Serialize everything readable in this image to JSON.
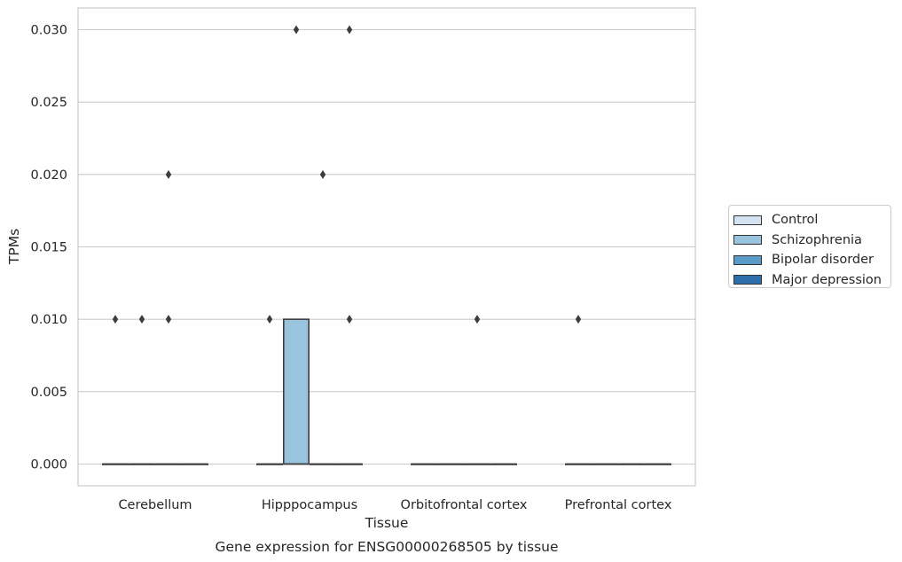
{
  "chart_data": {
    "type": "box",
    "title": "Gene expression for ENSG00000268505 by tissue",
    "xlabel": "Tissue",
    "ylabel": "TPMs",
    "categories": [
      "Cerebellum",
      "Hipppocampus",
      "Orbitofrontal cortex",
      "Prefrontal cortex"
    ],
    "ylim": [
      -0.0015,
      0.0315
    ],
    "yticks": [
      0.0,
      0.005,
      0.01,
      0.015,
      0.02,
      0.025,
      0.03
    ],
    "ytick_labels": [
      "0.000",
      "0.005",
      "0.010",
      "0.015",
      "0.020",
      "0.025",
      "0.030"
    ],
    "grid": "horizontal",
    "legend_position": "right",
    "series": [
      {
        "name": "Control",
        "color": "#d4e3f1",
        "boxes": [
          {
            "q1": 0,
            "median": 0,
            "q3": 0,
            "whisker_low": 0,
            "whisker_high": 0,
            "outliers": [
              0.01
            ]
          },
          {
            "q1": 0,
            "median": 0,
            "q3": 0,
            "whisker_low": 0,
            "whisker_high": 0,
            "outliers": [
              0.01
            ]
          },
          {
            "q1": 0,
            "median": 0,
            "q3": 0,
            "whisker_low": 0,
            "whisker_high": 0,
            "outliers": []
          },
          {
            "q1": 0,
            "median": 0,
            "q3": 0,
            "whisker_low": 0,
            "whisker_high": 0,
            "outliers": [
              0.01
            ]
          }
        ]
      },
      {
        "name": "Schizophrenia",
        "color": "#9ac3dd",
        "boxes": [
          {
            "q1": 0,
            "median": 0,
            "q3": 0,
            "whisker_low": 0,
            "whisker_high": 0,
            "outliers": [
              0.01
            ]
          },
          {
            "q1": 0,
            "median": 0,
            "q3": 0.01,
            "whisker_low": 0,
            "whisker_high": 0.01,
            "outliers": [
              0.03
            ]
          },
          {
            "q1": 0,
            "median": 0,
            "q3": 0,
            "whisker_low": 0,
            "whisker_high": 0,
            "outliers": []
          },
          {
            "q1": 0,
            "median": 0,
            "q3": 0,
            "whisker_low": 0,
            "whisker_high": 0,
            "outliers": []
          }
        ]
      },
      {
        "name": "Bipolar disorder",
        "color": "#5a9ac8",
        "boxes": [
          {
            "q1": 0,
            "median": 0,
            "q3": 0,
            "whisker_low": 0,
            "whisker_high": 0,
            "outliers": [
              0.01,
              0.02
            ]
          },
          {
            "q1": 0,
            "median": 0,
            "q3": 0,
            "whisker_low": 0,
            "whisker_high": 0,
            "outliers": [
              0.02
            ]
          },
          {
            "q1": 0,
            "median": 0,
            "q3": 0,
            "whisker_low": 0,
            "whisker_high": 0,
            "outliers": [
              0.01
            ]
          },
          {
            "q1": 0,
            "median": 0,
            "q3": 0,
            "whisker_low": 0,
            "whisker_high": 0,
            "outliers": []
          }
        ]
      },
      {
        "name": "Major depression",
        "color": "#2e6fab",
        "boxes": [
          {
            "q1": 0,
            "median": 0,
            "q3": 0,
            "whisker_low": 0,
            "whisker_high": 0,
            "outliers": []
          },
          {
            "q1": 0,
            "median": 0,
            "q3": 0,
            "whisker_low": 0,
            "whisker_high": 0,
            "outliers": [
              0.01,
              0.03
            ]
          },
          {
            "q1": 0,
            "median": 0,
            "q3": 0,
            "whisker_low": 0,
            "whisker_high": 0,
            "outliers": []
          },
          {
            "q1": 0,
            "median": 0,
            "q3": 0,
            "whisker_low": 0,
            "whisker_high": 0,
            "outliers": []
          }
        ]
      }
    ]
  }
}
